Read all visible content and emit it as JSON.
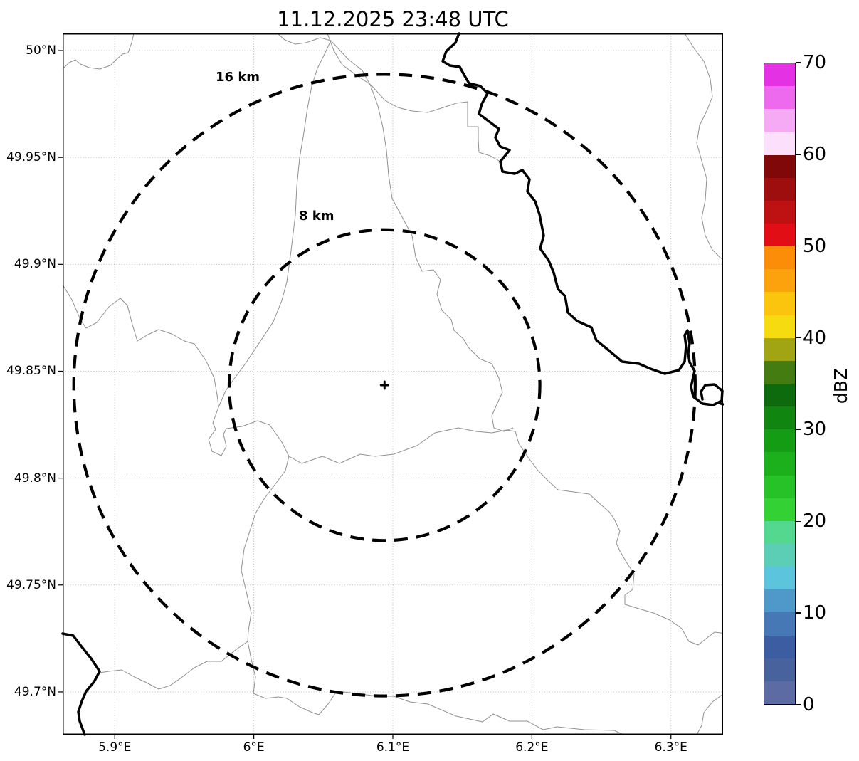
{
  "title": "11.12.2025 23:48 UTC",
  "map": {
    "x_tick_labels": [
      "5.9°E",
      "6°E",
      "6.1°E",
      "6.2°E",
      "6.3°E"
    ],
    "y_tick_labels": [
      "50°N",
      "49.95°N",
      "49.9°N",
      "49.85°N",
      "49.8°N",
      "49.75°N",
      "49.7°N"
    ],
    "ring_labels": {
      "outer": "16 km",
      "inner": "8 km"
    }
  },
  "colorbar": {
    "unit": "dBZ",
    "tick_labels": [
      "0",
      "10",
      "20",
      "30",
      "40",
      "50",
      "60",
      "70"
    ]
  },
  "chart_data": {
    "type": "map",
    "title": "11.12.2025 23:48 UTC",
    "x_axis": {
      "ticks": [
        5.9,
        6.0,
        6.1,
        6.2,
        6.3
      ],
      "range": [
        5.8625,
        6.3375
      ],
      "label_format": "degrees east"
    },
    "y_axis": {
      "ticks": [
        50.0,
        49.95,
        49.9,
        49.85,
        49.8,
        49.75,
        49.7
      ],
      "range": [
        49.68,
        50.008
      ],
      "label_format": "degrees north"
    },
    "grid": true,
    "radar_center": {
      "lon": 6.094,
      "lat": 49.8435
    },
    "range_rings_km": [
      8,
      16
    ],
    "km_per_degree_lon": 71.6,
    "colorbar": {
      "label": "dBZ",
      "range": [
        0,
        70
      ],
      "ticks": [
        0,
        10,
        20,
        30,
        40,
        50,
        60,
        70
      ],
      "segment_step": 2.5,
      "colors_bottom_to_top": [
        "#5C6BA4",
        "#48629E",
        "#3D5DA3",
        "#4678B6",
        "#4F98CA",
        "#5CC5DD",
        "#5BCEB5",
        "#54D890",
        "#33D133",
        "#27C227",
        "#1DB01D",
        "#149C14",
        "#108510",
        "#0D6B0D",
        "#457C12",
        "#A2A513",
        "#F6DB10",
        "#FBC40D",
        "#FCA20C",
        "#FB8D08",
        "#E10E16",
        "#BE1212",
        "#9F0E0E",
        "#800808",
        "#FBDFFB",
        "#F6AAF6",
        "#ED69ED",
        "#E331E3"
      ]
    }
  }
}
